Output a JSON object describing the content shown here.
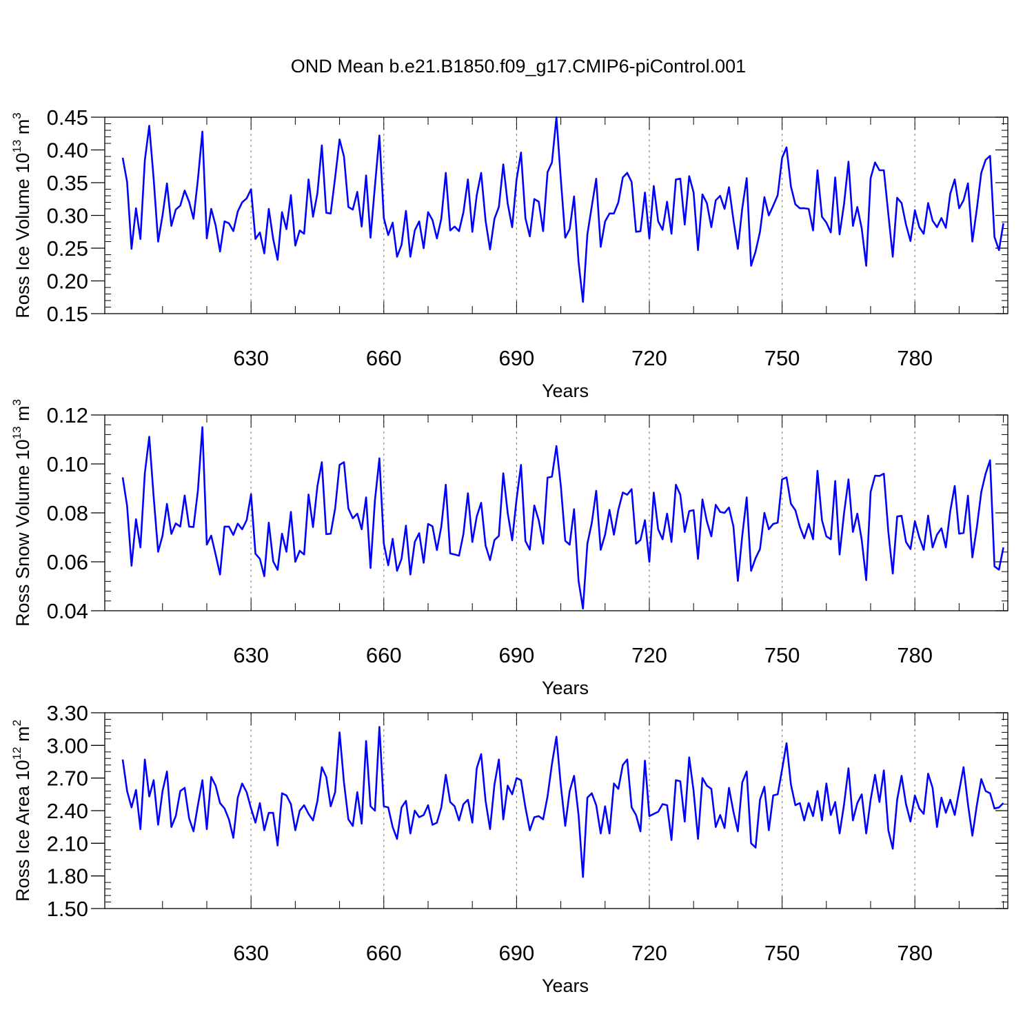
{
  "title": "OND Mean b.e21.B1850.f09_g17.CMIP6-piControl.001",
  "colors": {
    "series": "#0000ff",
    "axis": "#000000",
    "grid": "#888888"
  },
  "chart_data": [
    {
      "type": "line",
      "ylabel_text": "Ross Ice Volume 10",
      "ylabel_exp": "13",
      "ylabel_unit": "m",
      "ylabel_unit_exp": "3",
      "xlabel": "Years",
      "xlim": [
        601,
        801
      ],
      "ylim": [
        0.15,
        0.45
      ],
      "xticks": [
        630,
        660,
        690,
        720,
        750,
        780
      ],
      "yticks": [
        "0.15",
        "0.20",
        "0.25",
        "0.30",
        "0.35",
        "0.40",
        "0.45"
      ],
      "x_start": 601,
      "values": [
        0.388,
        0.351,
        0.249,
        0.311,
        0.264,
        0.384,
        0.437,
        0.356,
        0.26,
        0.3,
        0.349,
        0.284,
        0.309,
        0.315,
        0.338,
        0.321,
        0.295,
        0.355,
        0.428,
        0.265,
        0.31,
        0.285,
        0.245,
        0.291,
        0.288,
        0.276,
        0.306,
        0.32,
        0.326,
        0.34,
        0.264,
        0.274,
        0.242,
        0.31,
        0.264,
        0.232,
        0.305,
        0.279,
        0.331,
        0.254,
        0.277,
        0.272,
        0.355,
        0.298,
        0.334,
        0.407,
        0.304,
        0.303,
        0.358,
        0.416,
        0.39,
        0.313,
        0.309,
        0.336,
        0.283,
        0.361,
        0.266,
        0.345,
        0.422,
        0.296,
        0.27,
        0.289,
        0.237,
        0.255,
        0.307,
        0.237,
        0.277,
        0.291,
        0.25,
        0.305,
        0.293,
        0.265,
        0.295,
        0.365,
        0.277,
        0.283,
        0.276,
        0.305,
        0.355,
        0.275,
        0.331,
        0.365,
        0.292,
        0.248,
        0.295,
        0.313,
        0.378,
        0.318,
        0.282,
        0.355,
        0.396,
        0.296,
        0.268,
        0.325,
        0.321,
        0.276,
        0.366,
        0.381,
        0.45,
        0.355,
        0.266,
        0.279,
        0.329,
        0.229,
        0.168,
        0.271,
        0.314,
        0.356,
        0.252,
        0.291,
        0.303,
        0.303,
        0.32,
        0.358,
        0.365,
        0.351,
        0.275,
        0.276,
        0.335,
        0.265,
        0.345,
        0.291,
        0.278,
        0.321,
        0.272,
        0.355,
        0.356,
        0.286,
        0.36,
        0.335,
        0.247,
        0.332,
        0.319,
        0.282,
        0.323,
        0.33,
        0.31,
        0.343,
        0.293,
        0.249,
        0.311,
        0.357,
        0.223,
        0.245,
        0.275,
        0.328,
        0.3,
        0.315,
        0.331,
        0.388,
        0.404,
        0.344,
        0.317,
        0.311,
        0.311,
        0.31,
        0.277,
        0.369,
        0.298,
        0.289,
        0.274,
        0.358,
        0.271,
        0.318,
        0.382,
        0.284,
        0.313,
        0.28,
        0.223,
        0.357,
        0.381,
        0.369,
        0.369,
        0.302,
        0.237,
        0.327,
        0.319,
        0.286,
        0.261,
        0.308,
        0.282,
        0.272,
        0.319,
        0.292,
        0.282,
        0.296,
        0.281,
        0.333,
        0.355,
        0.311,
        0.323,
        0.349,
        0.26,
        0.31,
        0.365,
        0.385,
        0.391,
        0.267,
        0.247,
        0.288
      ]
    },
    {
      "type": "line",
      "ylabel_text": "Ross Snow Volume 10",
      "ylabel_exp": "13",
      "ylabel_unit": "m",
      "ylabel_unit_exp": "3",
      "xlabel": "Years",
      "xlim": [
        601,
        801
      ],
      "ylim": [
        0.04,
        0.12
      ],
      "xticks": [
        630,
        660,
        690,
        720,
        750,
        780
      ],
      "yticks": [
        "0.04",
        "0.06",
        "0.08",
        "0.10",
        "0.12"
      ],
      "x_start": 601,
      "values": [
        0.0945,
        0.0828,
        0.0584,
        0.0774,
        0.0659,
        0.0962,
        0.1111,
        0.0866,
        0.0641,
        0.0707,
        0.0837,
        0.0714,
        0.0757,
        0.0744,
        0.0871,
        0.0744,
        0.0742,
        0.0891,
        0.115,
        0.067,
        0.0707,
        0.063,
        0.0548,
        0.0744,
        0.0744,
        0.071,
        0.0756,
        0.0733,
        0.077,
        0.0876,
        0.0633,
        0.0612,
        0.0541,
        0.076,
        0.0602,
        0.0567,
        0.0715,
        0.0641,
        0.0804,
        0.06,
        0.0645,
        0.063,
        0.0875,
        0.0742,
        0.091,
        0.1007,
        0.0713,
        0.0715,
        0.0818,
        0.0996,
        0.1007,
        0.0818,
        0.0778,
        0.0797,
        0.0733,
        0.0863,
        0.0575,
        0.0851,
        0.1023,
        0.0674,
        0.0586,
        0.0694,
        0.0563,
        0.0612,
        0.0748,
        0.0548,
        0.0681,
        0.0717,
        0.0596,
        0.0755,
        0.0745,
        0.0648,
        0.0744,
        0.0915,
        0.0634,
        0.063,
        0.0625,
        0.0714,
        0.088,
        0.0681,
        0.0785,
        0.0841,
        0.0667,
        0.0607,
        0.0689,
        0.0706,
        0.0962,
        0.08,
        0.0688,
        0.0856,
        0.0996,
        0.0685,
        0.065,
        0.083,
        0.077,
        0.0674,
        0.0944,
        0.0948,
        0.1073,
        0.091,
        0.0686,
        0.067,
        0.0815,
        0.0522,
        0.0409,
        0.0674,
        0.0759,
        0.089,
        0.0649,
        0.0711,
        0.0812,
        0.0711,
        0.0812,
        0.0883,
        0.0874,
        0.0897,
        0.0674,
        0.0689,
        0.077,
        0.06,
        0.0883,
        0.0733,
        0.0692,
        0.0797,
        0.0681,
        0.0915,
        0.0874,
        0.0722,
        0.0807,
        0.0811,
        0.0612,
        0.0855,
        0.0766,
        0.0704,
        0.0833,
        0.0804,
        0.08,
        0.0822,
        0.0744,
        0.0522,
        0.0707,
        0.0863,
        0.0563,
        0.0615,
        0.0652,
        0.08,
        0.0733,
        0.0755,
        0.076,
        0.0937,
        0.0945,
        0.0837,
        0.0811,
        0.0744,
        0.0696,
        0.0755,
        0.0692,
        0.0972,
        0.077,
        0.0704,
        0.0692,
        0.093,
        0.063,
        0.08,
        0.0937,
        0.0722,
        0.0797,
        0.0689,
        0.0525,
        0.0885,
        0.0952,
        0.0951,
        0.096,
        0.0722,
        0.0552,
        0.0785,
        0.0788,
        0.0681,
        0.0652,
        0.0766,
        0.07,
        0.0649,
        0.0789,
        0.0659,
        0.0711,
        0.0737,
        0.0659,
        0.0807,
        0.091,
        0.0715,
        0.0718,
        0.087,
        0.0618,
        0.0741,
        0.0885,
        0.0961,
        0.1015,
        0.0581,
        0.0568,
        0.0659
      ]
    },
    {
      "type": "line",
      "ylabel_text": "Ross Ice Area 10",
      "ylabel_exp": "12",
      "ylabel_unit": "m",
      "ylabel_unit_exp": "2",
      "xlabel": "Years",
      "xlim": [
        601,
        801
      ],
      "ylim": [
        1.5,
        3.3
      ],
      "xticks": [
        630,
        660,
        690,
        720,
        750,
        780
      ],
      "yticks": [
        "1.50",
        "1.80",
        "2.10",
        "2.40",
        "2.70",
        "3.00",
        "3.30"
      ],
      "x_start": 601,
      "values": [
        2.87,
        2.58,
        2.43,
        2.59,
        2.23,
        2.87,
        2.53,
        2.68,
        2.27,
        2.58,
        2.76,
        2.25,
        2.35,
        2.58,
        2.61,
        2.33,
        2.21,
        2.45,
        2.68,
        2.23,
        2.71,
        2.63,
        2.47,
        2.42,
        2.32,
        2.15,
        2.52,
        2.65,
        2.57,
        2.42,
        2.29,
        2.47,
        2.22,
        2.38,
        2.38,
        2.08,
        2.56,
        2.54,
        2.46,
        2.22,
        2.4,
        2.45,
        2.37,
        2.31,
        2.49,
        2.8,
        2.71,
        2.44,
        2.57,
        3.12,
        2.66,
        2.32,
        2.26,
        2.57,
        2.28,
        3.04,
        2.44,
        2.4,
        3.17,
        2.44,
        2.43,
        2.25,
        2.14,
        2.43,
        2.49,
        2.19,
        2.4,
        2.34,
        2.36,
        2.45,
        2.27,
        2.29,
        2.43,
        2.73,
        2.48,
        2.44,
        2.31,
        2.46,
        2.5,
        2.29,
        2.79,
        2.92,
        2.49,
        2.23,
        2.64,
        2.87,
        2.32,
        2.63,
        2.55,
        2.7,
        2.68,
        2.43,
        2.22,
        2.34,
        2.35,
        2.32,
        2.53,
        2.83,
        3.08,
        2.63,
        2.26,
        2.58,
        2.72,
        2.36,
        1.79,
        2.52,
        2.56,
        2.45,
        2.19,
        2.44,
        2.19,
        2.65,
        2.6,
        2.82,
        2.87,
        2.43,
        2.36,
        2.21,
        2.86,
        2.35,
        2.37,
        2.39,
        2.46,
        2.45,
        2.13,
        2.68,
        2.67,
        2.3,
        2.89,
        2.58,
        2.14,
        2.7,
        2.63,
        2.6,
        2.25,
        2.36,
        2.24,
        2.61,
        2.39,
        2.21,
        2.66,
        2.76,
        2.1,
        2.06,
        2.5,
        2.62,
        2.22,
        2.54,
        2.55,
        2.78,
        3.02,
        2.64,
        2.45,
        2.47,
        2.31,
        2.47,
        2.35,
        2.58,
        2.31,
        2.65,
        2.36,
        2.48,
        2.19,
        2.46,
        2.79,
        2.31,
        2.47,
        2.55,
        2.19,
        2.5,
        2.73,
        2.48,
        2.77,
        2.22,
        2.05,
        2.5,
        2.72,
        2.46,
        2.3,
        2.54,
        2.42,
        2.37,
        2.74,
        2.61,
        2.25,
        2.52,
        2.38,
        2.5,
        2.36,
        2.58,
        2.8,
        2.46,
        2.17,
        2.45,
        2.69,
        2.58,
        2.56,
        2.42,
        2.43,
        2.47
      ]
    }
  ]
}
